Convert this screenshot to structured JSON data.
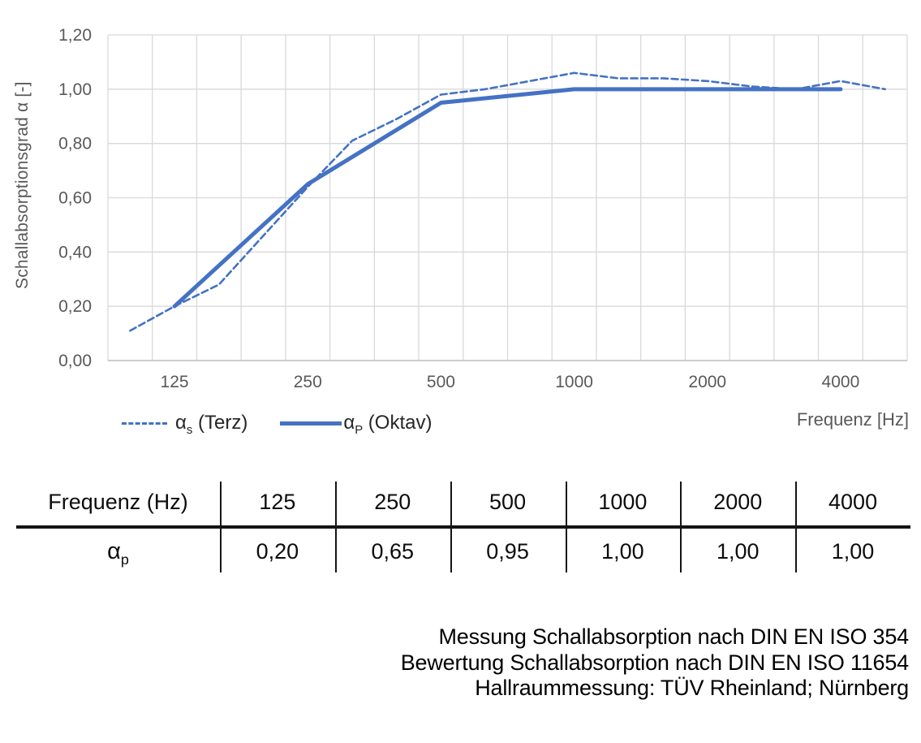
{
  "chart_data": {
    "type": "line",
    "title": "",
    "x_axis_title": "Frequenz [Hz]",
    "y_axis_title": "Schallabsorptionsgrad α [-]",
    "x_scale": "third-octave-band categories (logarithmic frequency)",
    "x_categories": [
      100,
      125,
      160,
      200,
      250,
      315,
      400,
      500,
      630,
      800,
      1000,
      1250,
      1600,
      2000,
      2500,
      3150,
      4000,
      5000
    ],
    "x_tick_labels": [
      "125",
      "250",
      "500",
      "1000",
      "2000",
      "4000"
    ],
    "x_tick_freqs": [
      125,
      250,
      500,
      1000,
      2000,
      4000
    ],
    "ylim": [
      0,
      1.2
    ],
    "y_tick_labels": [
      "0,00",
      "0,20",
      "0,40",
      "0,60",
      "0,80",
      "1,00",
      "1,20"
    ],
    "y_tick_values": [
      0,
      0.2,
      0.4,
      0.6,
      0.8,
      1.0,
      1.2
    ],
    "grid": true,
    "legend_position": "bottom-left",
    "series": [
      {
        "name": "as_terz",
        "style": "dashed",
        "color": "#4472C4",
        "x": [
          100,
          125,
          160,
          200,
          250,
          315,
          400,
          500,
          630,
          800,
          1000,
          1250,
          1600,
          2000,
          2500,
          3150,
          4000,
          5000
        ],
        "values": [
          0.11,
          0.2,
          0.28,
          0.46,
          0.64,
          0.81,
          0.89,
          0.98,
          1.0,
          1.03,
          1.06,
          1.04,
          1.04,
          1.03,
          1.01,
          1.0,
          1.03,
          1.0
        ]
      },
      {
        "name": "ap_oktav",
        "style": "solid",
        "color": "#4472C4",
        "x": [
          125,
          250,
          500,
          1000,
          2000,
          4000
        ],
        "values": [
          0.2,
          0.65,
          0.95,
          1.0,
          1.0,
          1.0
        ]
      }
    ]
  },
  "legend": {
    "items": [
      {
        "sym": "α",
        "sub": "s",
        "text": " (Terz)"
      },
      {
        "sym": "α",
        "sub": "P",
        "text": " (Oktav)"
      }
    ]
  },
  "table": {
    "header_label": "Frequenz (Hz)",
    "header_freqs": [
      "125",
      "250",
      "500",
      "1000",
      "2000",
      "4000"
    ],
    "row_label_sym": "α",
    "row_label_sub": "p",
    "values": [
      "0,20",
      "0,65",
      "0,95",
      "1,00",
      "1,00",
      "1,00"
    ]
  },
  "footer": {
    "lines": [
      "Messung Schallabsorption nach DIN EN ISO 354",
      "Bewertung Schallabsorption nach DIN EN ISO 11654",
      "Hallraummessung: TÜV Rheinland; Nürnberg"
    ]
  },
  "colors": {
    "line_blue": "#4472C4",
    "gridline": "#D9D9D9",
    "axis_text": "#595959",
    "body_text": "#000000"
  }
}
